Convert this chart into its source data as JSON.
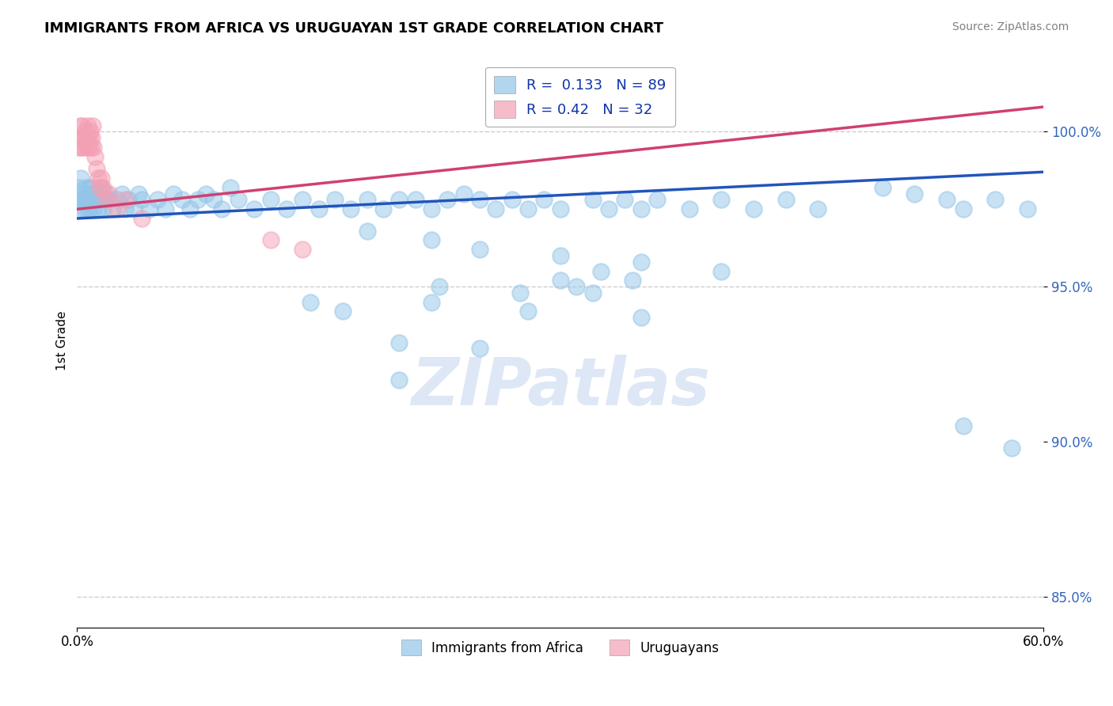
{
  "title": "IMMIGRANTS FROM AFRICA VS URUGUAYAN 1ST GRADE CORRELATION CHART",
  "source": "Source: ZipAtlas.com",
  "ylabel": "1st Grade",
  "legend_labels": [
    "Immigrants from Africa",
    "Uruguayans"
  ],
  "legend_R": [
    0.133,
    0.42
  ],
  "legend_N": [
    89,
    32
  ],
  "blue_color": "#92C5E8",
  "pink_color": "#F4A0B4",
  "trend_blue": "#2255BB",
  "trend_pink": "#D04070",
  "watermark_text": "ZIPatlas",
  "xlim": [
    0.0,
    60.0
  ],
  "ylim": [
    84.0,
    102.5
  ],
  "yticks": [
    85.0,
    90.0,
    95.0,
    100.0
  ],
  "ytick_labels": [
    "85.0%",
    "90.0%",
    "95.0%",
    "100.0%"
  ],
  "blue_scatter_x": [
    0.1,
    0.2,
    0.25,
    0.3,
    0.35,
    0.4,
    0.45,
    0.5,
    0.55,
    0.6,
    0.65,
    0.7,
    0.75,
    0.8,
    0.85,
    0.9,
    0.95,
    1.0,
    1.1,
    1.2,
    1.3,
    1.4,
    1.5,
    1.6,
    1.7,
    1.8,
    2.0,
    2.2,
    2.5,
    2.8,
    3.0,
    3.2,
    3.5,
    3.8,
    4.0,
    4.5,
    5.0,
    5.5,
    6.0,
    6.5,
    7.0,
    7.5,
    8.0,
    8.5,
    9.0,
    9.5,
    10.0,
    11.0,
    12.0,
    13.0,
    14.0,
    15.0,
    16.0,
    17.0,
    18.0,
    19.0,
    20.0,
    21.0,
    22.0,
    23.0,
    24.0,
    25.0,
    26.0,
    27.0,
    28.0,
    29.0,
    30.0,
    32.0,
    33.0,
    34.0,
    35.0,
    36.0,
    38.0,
    40.0,
    42.0,
    44.0,
    46.0,
    50.0,
    52.0,
    54.0,
    55.0,
    57.0,
    59.0,
    32.5,
    34.5,
    22.5,
    27.5,
    14.5,
    16.5
  ],
  "blue_scatter_y": [
    98.2,
    97.8,
    98.5,
    97.5,
    98.0,
    97.8,
    97.5,
    98.2,
    97.8,
    98.0,
    97.5,
    97.8,
    98.2,
    97.5,
    98.0,
    97.8,
    98.2,
    97.5,
    97.8,
    98.0,
    97.5,
    97.8,
    98.2,
    97.5,
    97.8,
    98.0,
    97.8,
    97.5,
    97.8,
    98.0,
    97.5,
    97.8,
    97.5,
    98.0,
    97.8,
    97.5,
    97.8,
    97.5,
    98.0,
    97.8,
    97.5,
    97.8,
    98.0,
    97.8,
    97.5,
    98.2,
    97.8,
    97.5,
    97.8,
    97.5,
    97.8,
    97.5,
    97.8,
    97.5,
    97.8,
    97.5,
    97.8,
    97.8,
    97.5,
    97.8,
    98.0,
    97.8,
    97.5,
    97.8,
    97.5,
    97.8,
    97.5,
    97.8,
    97.5,
    97.8,
    97.5,
    97.8,
    97.5,
    97.8,
    97.5,
    97.8,
    97.5,
    98.2,
    98.0,
    97.8,
    97.5,
    97.8,
    97.5,
    95.5,
    95.2,
    95.0,
    94.8,
    94.5,
    94.2
  ],
  "blue_scatter_x2": [
    18.0,
    22.0,
    25.0,
    30.0,
    35.0,
    40.0,
    30.0,
    31.0,
    32.0,
    22.0,
    28.0,
    35.0,
    20.0,
    25.0,
    20.0,
    55.0,
    58.0
  ],
  "blue_scatter_y2": [
    96.8,
    96.5,
    96.2,
    96.0,
    95.8,
    95.5,
    95.2,
    95.0,
    94.8,
    94.5,
    94.2,
    94.0,
    93.2,
    93.0,
    92.0,
    90.5,
    89.8
  ],
  "pink_scatter_x": [
    0.1,
    0.15,
    0.2,
    0.25,
    0.3,
    0.35,
    0.4,
    0.45,
    0.5,
    0.55,
    0.6,
    0.65,
    0.7,
    0.75,
    0.8,
    0.85,
    0.9,
    0.95,
    1.0,
    1.1,
    1.2,
    1.3,
    1.4,
    1.5,
    1.6,
    1.8,
    2.0,
    2.5,
    3.0,
    4.0,
    12.0,
    14.0
  ],
  "pink_scatter_y": [
    99.5,
    99.8,
    100.2,
    99.5,
    99.8,
    100.2,
    99.5,
    99.8,
    100.0,
    99.5,
    99.8,
    100.2,
    99.5,
    99.8,
    100.0,
    99.5,
    99.8,
    100.2,
    99.5,
    99.2,
    98.8,
    98.5,
    98.2,
    98.5,
    98.2,
    97.8,
    98.0,
    97.5,
    97.8,
    97.2,
    96.5,
    96.2
  ],
  "blue_trend_x": [
    0.0,
    60.0
  ],
  "blue_trend_y": [
    97.2,
    98.7
  ],
  "pink_trend_x": [
    0.0,
    60.0
  ],
  "pink_trend_y": [
    97.5,
    100.8
  ],
  "dashed_line_y1": 100.0,
  "dashed_line_y2": 95.0,
  "dashed_line_y3": 85.0,
  "background_color": "#FFFFFF",
  "grid_color": "#CCCCCC"
}
